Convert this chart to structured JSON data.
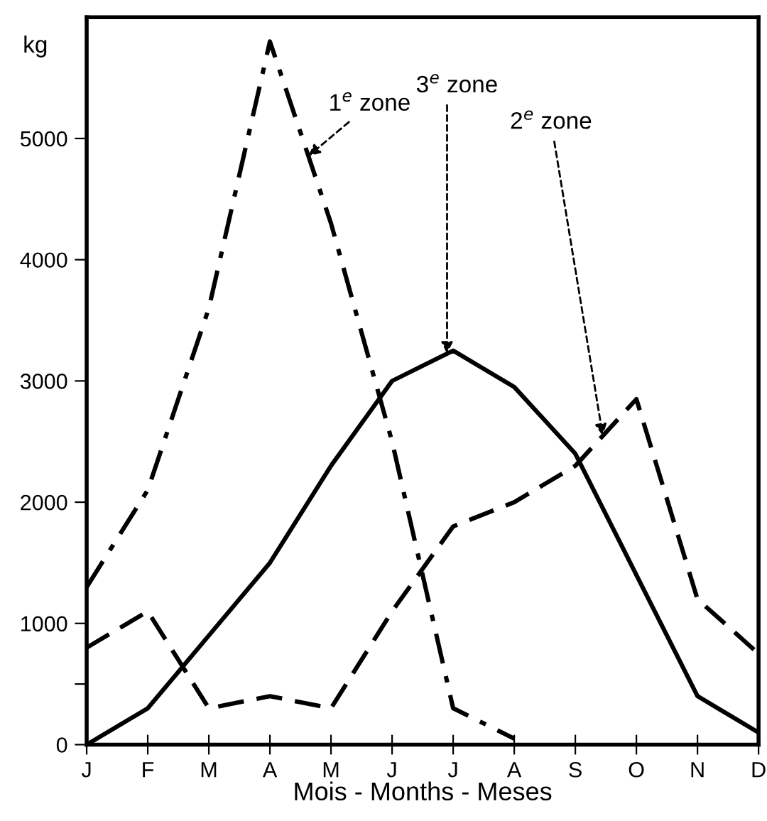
{
  "chart_data": {
    "type": "line",
    "xlabel": "Mois - Months - Meses",
    "ylabel": "kg",
    "categories": [
      "J",
      "F",
      "M",
      "A",
      "M",
      "J",
      "J",
      "A",
      "S",
      "O",
      "N",
      "D"
    ],
    "ylim": [
      0,
      6000
    ],
    "yticks": [
      0,
      {
        "value": 500,
        "label": null
      },
      1000,
      2000,
      3000,
      4000,
      5000
    ],
    "grid": false,
    "legend": false,
    "marker": "none",
    "series": [
      {
        "name": "1$^{e}$ zone",
        "color": "#000000",
        "line_style": "dashdot",
        "values": [
          1300,
          2100,
          3600,
          5800,
          4300,
          2500,
          300,
          50,
          null,
          null,
          null,
          null
        ]
      },
      {
        "name": "3$^{e}$ zone",
        "color": "#000000",
        "line_style": "solid",
        "values": [
          0,
          300,
          900,
          1500,
          2300,
          3000,
          3250,
          2950,
          2400,
          1400,
          400,
          100
        ]
      },
      {
        "name": "2$^{e}$ zone",
        "color": "#000000",
        "line_style": "dashed",
        "values": [
          800,
          1100,
          300,
          400,
          300,
          1100,
          1800,
          2000,
          2300,
          2850,
          1200,
          750
        ]
      }
    ]
  }
}
